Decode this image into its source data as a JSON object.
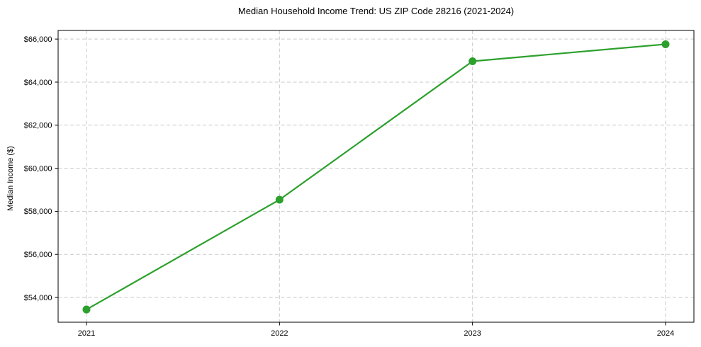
{
  "figure": {
    "background": "#ffffff"
  },
  "chart_data": {
    "type": "line",
    "title": "Median Household Income Trend: US ZIP Code 28216 (2021-2024)",
    "xlabel": "",
    "ylabel": "Median Income ($)",
    "categories": [
      "2021",
      "2022",
      "2023",
      "2024"
    ],
    "series": [
      {
        "name": "Median Household Income",
        "values": [
          53440,
          58540,
          64970,
          65760
        ],
        "color": "#2ca02c",
        "marker": "circle",
        "line_style": "solid"
      }
    ],
    "ylim": [
      52850,
      66400
    ],
    "yticks": {
      "values": [
        54000,
        56000,
        58000,
        60000,
        62000,
        64000,
        66000
      ],
      "labels": [
        "$54,000",
        "$56,000",
        "$58,000",
        "$60,000",
        "$62,000",
        "$64,000",
        "$66,000"
      ]
    },
    "grid": {
      "visible": true,
      "style": "dashed",
      "color": "#c9c9c9"
    },
    "legend": {
      "visible": false
    },
    "spine_color": "#000000",
    "text_color": "#000000"
  }
}
